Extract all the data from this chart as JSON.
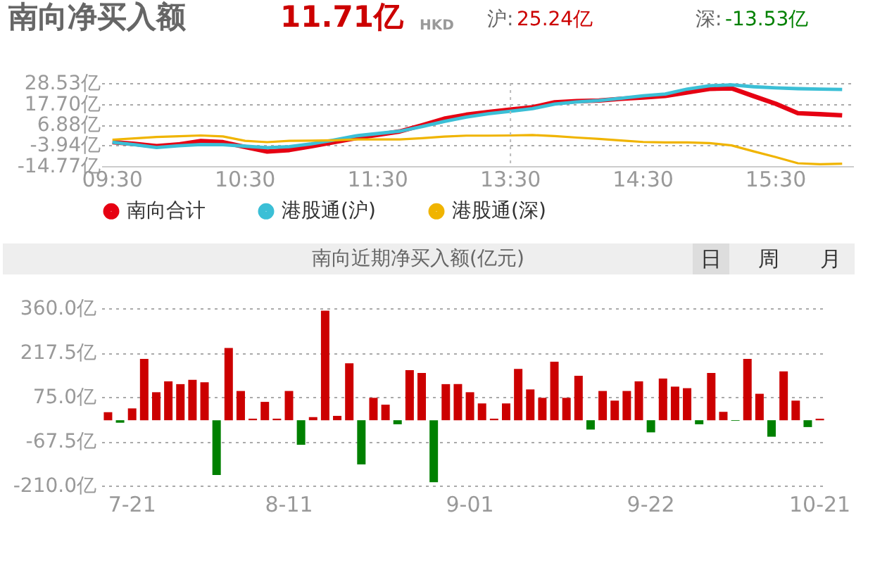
{
  "chart_data": [
    {
      "type": "line",
      "title": "南向净买入额",
      "annotations": [
        "11.71亿",
        "HKD",
        "沪:",
        "25.24亿",
        "深:",
        "-13.53亿"
      ],
      "categories": [
        "09:30",
        null,
        null,
        null,
        null,
        null,
        "10:30",
        null,
        null,
        null,
        null,
        null,
        "11:30",
        null,
        null,
        null,
        null,
        null,
        "13:30",
        null,
        null,
        null,
        null,
        null,
        "14:30",
        null,
        null,
        null,
        null,
        null,
        "15:30",
        null,
        null,
        null
      ],
      "ylim": [
        -14.77,
        28.53
      ],
      "yticks": [
        {
          "value": 28.53,
          "label": "28.53亿"
        },
        {
          "value": 17.7,
          "label": "17.70亿"
        },
        {
          "value": 6.88,
          "label": "6.88亿"
        },
        {
          "value": -3.94,
          "label": "-3.94亿"
        },
        {
          "value": -14.77,
          "label": "-14.77亿"
        }
      ],
      "grid": "y",
      "legend": "bottom",
      "marker": "none",
      "line_style": "solid",
      "ref_lines": [
        {
          "axis": "x",
          "value": "13:30",
          "line_style": "dotted"
        }
      ],
      "series": [
        {
          "name": "南向合计",
          "color": "#e60012",
          "values": [
            -2.3,
            -3.2,
            -4.4,
            -3.5,
            -1.7,
            -2.3,
            -4.8,
            -7.2,
            -6.4,
            -4.4,
            -2.3,
            -0.2,
            1.5,
            3.3,
            6.5,
            9.9,
            12.0,
            13.4,
            14.7,
            15.9,
            18.5,
            19.1,
            19.4,
            20.3,
            21.0,
            21.8,
            23.6,
            25.5,
            25.8,
            21.7,
            17.7,
            12.8,
            12.3,
            11.7
          ]
        },
        {
          "name": "港股通(沪)",
          "color": "#3bbfd6",
          "values": [
            -2.3,
            -3.6,
            -5.1,
            -4.2,
            -3.5,
            -3.6,
            -4.4,
            -5.2,
            -4.6,
            -3.2,
            -1.2,
            1.0,
            2.2,
            3.4,
            5.8,
            8.5,
            10.8,
            12.5,
            13.8,
            15.2,
            17.6,
            18.7,
            19.4,
            20.6,
            21.9,
            22.8,
            25.4,
            27.1,
            27.6,
            26.6,
            26.0,
            25.6,
            25.4,
            25.2
          ]
        },
        {
          "name": "港股通(深)",
          "color": "#f0b400",
          "values": [
            -1.0,
            -0.3,
            0.4,
            0.8,
            1.2,
            0.7,
            -1.6,
            -2.3,
            -1.6,
            -1.5,
            -1.3,
            -0.9,
            -0.9,
            -0.9,
            -0.2,
            0.6,
            1.1,
            1.1,
            1.2,
            1.4,
            0.9,
            0.1,
            -0.6,
            -1.4,
            -2.2,
            -2.4,
            -2.4,
            -2.8,
            -4.0,
            -7.1,
            -10.1,
            -13.3,
            -13.8,
            -13.5
          ]
        }
      ]
    },
    {
      "type": "bar",
      "title": "南向近期净买入额(亿元)",
      "annotations": [
        "日",
        "周",
        "月"
      ],
      "categories": [
        null,
        null,
        "7-21",
        null,
        null,
        null,
        null,
        null,
        null,
        null,
        null,
        null,
        null,
        null,
        null,
        "8-11",
        null,
        null,
        null,
        null,
        null,
        null,
        null,
        null,
        null,
        null,
        null,
        null,
        null,
        null,
        "9-01",
        null,
        null,
        null,
        null,
        null,
        null,
        null,
        null,
        null,
        null,
        null,
        null,
        null,
        null,
        "9-22",
        null,
        null,
        null,
        null,
        null,
        null,
        null,
        null,
        null,
        null,
        null,
        null,
        null,
        "10-21"
      ],
      "values": [
        26,
        -8,
        38,
        197,
        90,
        125,
        116,
        130,
        122,
        -176,
        232,
        94,
        5,
        59,
        5,
        94,
        -79,
        10,
        352,
        14,
        183,
        -142,
        72,
        50,
        -13,
        161,
        152,
        -199,
        116,
        116,
        90,
        54,
        5,
        54,
        165,
        99,
        72,
        188,
        72,
        143,
        -30,
        94,
        63,
        94,
        125,
        -39,
        134,
        108,
        103,
        -13,
        152,
        27,
        -2,
        197,
        85,
        -53,
        157,
        63,
        -22,
        5
      ],
      "colors": [
        "#cc0000",
        "#008000",
        "#cc0000",
        "#cc0000",
        "#cc0000",
        "#cc0000",
        "#cc0000",
        "#cc0000",
        "#cc0000",
        "#008000",
        "#cc0000",
        "#cc0000",
        "#cc0000",
        "#cc0000",
        "#cc0000",
        "#cc0000",
        "#008000",
        "#cc0000",
        "#cc0000",
        "#cc0000",
        "#cc0000",
        "#008000",
        "#cc0000",
        "#cc0000",
        "#008000",
        "#cc0000",
        "#cc0000",
        "#008000",
        "#cc0000",
        "#cc0000",
        "#cc0000",
        "#cc0000",
        "#cc0000",
        "#cc0000",
        "#cc0000",
        "#cc0000",
        "#cc0000",
        "#cc0000",
        "#cc0000",
        "#cc0000",
        "#008000",
        "#cc0000",
        "#cc0000",
        "#cc0000",
        "#cc0000",
        "#008000",
        "#cc0000",
        "#cc0000",
        "#cc0000",
        "#008000",
        "#cc0000",
        "#cc0000",
        "#008000",
        "#cc0000",
        "#cc0000",
        "#008000",
        "#cc0000",
        "#cc0000",
        "#008000",
        "#cc0000"
      ],
      "ylim": [
        -210,
        360
      ],
      "yticks": [
        {
          "value": 360,
          "label": "360.0亿"
        },
        {
          "value": 217.5,
          "label": "217.5亿"
        },
        {
          "value": 75,
          "label": "75.0亿"
        },
        {
          "value": -67.5,
          "label": "-67.5亿"
        },
        {
          "value": -210,
          "label": "-210.0亿"
        }
      ],
      "grid": "y"
    }
  ]
}
